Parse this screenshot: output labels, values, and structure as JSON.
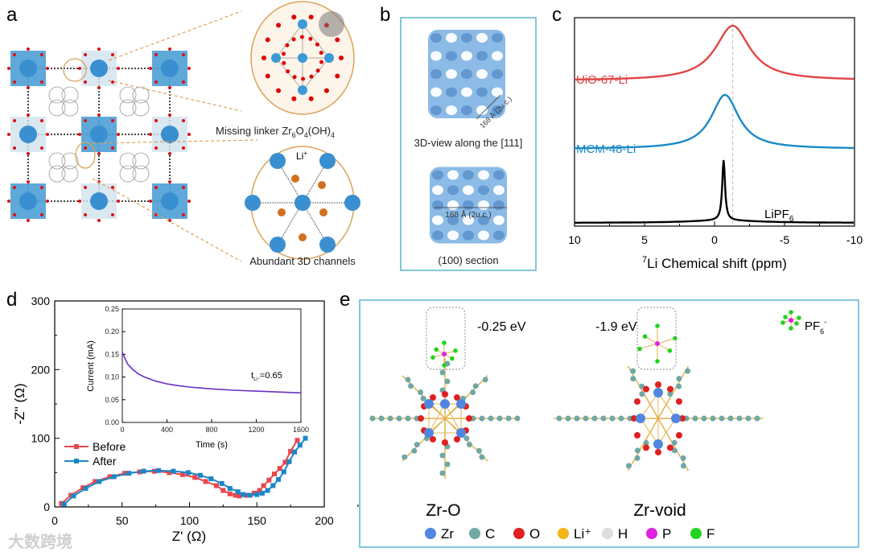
{
  "panels": {
    "a": {
      "label": "a",
      "caption_top": {
        "parts": [
          "Missing linker Zr",
          "6",
          "O",
          "4",
          "(OH)",
          "4"
        ]
      },
      "li_label": "Li",
      "li_sup": "+",
      "caption_bottom": "Abundant 3D channels"
    },
    "b": {
      "label": "b",
      "scale_top": "168 Å (2u.c.)",
      "caption_top": "3D-view along the [111]",
      "scale_bottom": "168 Å (2u.c.)",
      "caption_bottom": "(100) section",
      "frame_color": "#5ab4d6"
    },
    "c": {
      "label": "c"
    },
    "d": {
      "label": "d"
    },
    "e": {
      "label": "e",
      "left_energy": "-0.25 eV",
      "right_energy": "-1.9 eV",
      "pf6_label": "PF",
      "pf6_sub": "6",
      "pf6_sup": "-",
      "left_title": "Zr-O",
      "right_title": "Zr-void",
      "legend": [
        {
          "label": "Zr",
          "color": "#4f86e0"
        },
        {
          "label": "C",
          "color": "#6fa8a4"
        },
        {
          "label": "O",
          "color": "#e02020"
        },
        {
          "label": "Li⁺",
          "color": "#f2b617"
        },
        {
          "label": "H",
          "color": "#dddddd"
        },
        {
          "label": "P",
          "color": "#e020e0"
        },
        {
          "label": "F",
          "color": "#22d322"
        }
      ],
      "frame_color": "#5ab4d6"
    }
  },
  "watermark": "大数跨境",
  "chart_data": [
    {
      "panel": "c",
      "type": "line",
      "title": "",
      "xlabel_sup": "7",
      "xlabel": "Li Chemical shift (ppm)",
      "xlim": [
        10,
        -10
      ],
      "xticks": [
        "10",
        "5",
        "0",
        "-5",
        "-10"
      ],
      "xtick_values": [
        10,
        5,
        0,
        -5,
        -10
      ],
      "reference_line_ppm": -1.3,
      "series": [
        {
          "name": "UiO-67-Li",
          "color": "#e04545",
          "peak_ppm": -1.3,
          "hwhm_ppm": 1.5,
          "relative_offset": 2,
          "relative_height": 0.85
        },
        {
          "name": "MCM-48-Li",
          "color": "#1a8ac6",
          "peak_ppm": -0.75,
          "hwhm_ppm": 1.2,
          "relative_offset": 1,
          "relative_height": 0.85
        },
        {
          "name": "LiPF6",
          "name_main": "LiPF",
          "name_sub": "6",
          "color": "#000000",
          "peak_ppm": -0.65,
          "hwhm_ppm": 0.12,
          "relative_offset": 0,
          "relative_height": 0.95
        }
      ]
    },
    {
      "panel": "d",
      "type": "line",
      "xlabel": "Z'  (Ω)",
      "ylabel": "-Z''  (Ω)",
      "xlim": [
        0,
        200
      ],
      "ylim": [
        0,
        300
      ],
      "xticks": [
        "0",
        "50",
        "100",
        "150",
        "200"
      ],
      "yticks": [
        "0",
        "100",
        "200",
        "300"
      ],
      "legend_position": "middle-left",
      "series": [
        {
          "name": "Before",
          "color": "#e8474c",
          "x": [
            5,
            12,
            21,
            30,
            41,
            52,
            63,
            74,
            85,
            95,
            104,
            112,
            120,
            125,
            130,
            134,
            137,
            142,
            148,
            152,
            155,
            159,
            163,
            167,
            171,
            175,
            180
          ],
          "y": [
            5,
            17,
            28,
            37,
            44,
            49,
            51,
            52,
            50,
            47,
            43,
            37,
            31,
            24,
            19,
            17,
            16,
            17,
            20,
            24,
            31,
            39,
            48,
            56,
            65,
            81,
            97
          ]
        },
        {
          "name": "After",
          "color": "#1a86c8",
          "x": [
            7,
            14,
            23,
            33,
            44,
            55,
            66,
            77,
            88,
            99,
            108,
            116,
            124,
            130,
            136,
            140,
            145,
            150,
            154,
            158,
            162,
            166,
            170,
            174,
            178,
            182,
            186
          ],
          "y": [
            4,
            16,
            27,
            37,
            44,
            49,
            52,
            53,
            52,
            50,
            46,
            41,
            34,
            27,
            22,
            18,
            17,
            18,
            20,
            24,
            31,
            40,
            51,
            66,
            80,
            90,
            100
          ]
        }
      ]
    },
    {
      "panel": "d-inset",
      "type": "line",
      "xlabel": "Time (s)",
      "ylabel": "Current (mA)",
      "xlim": [
        0,
        1600
      ],
      "ylim": [
        0,
        0.25
      ],
      "xticks": [
        "0",
        "400",
        "800",
        "1200",
        "1600"
      ],
      "yticks": [
        "0.00",
        "0.05",
        "0.10",
        "0.15",
        "0.20",
        "0.25"
      ],
      "annotation": {
        "main": "t",
        "sub": "Li⁺",
        "rest": "=0.65"
      },
      "series": [
        {
          "name": "current",
          "color": "#6a2fc4",
          "x": [
            0,
            25,
            50,
            100,
            150,
            200,
            300,
            400,
            500,
            600,
            800,
            1000,
            1200,
            1400,
            1600
          ],
          "y": [
            0.155,
            0.14,
            0.128,
            0.115,
            0.106,
            0.1,
            0.091,
            0.085,
            0.081,
            0.078,
            0.074,
            0.071,
            0.069,
            0.067,
            0.065
          ]
        }
      ]
    }
  ]
}
